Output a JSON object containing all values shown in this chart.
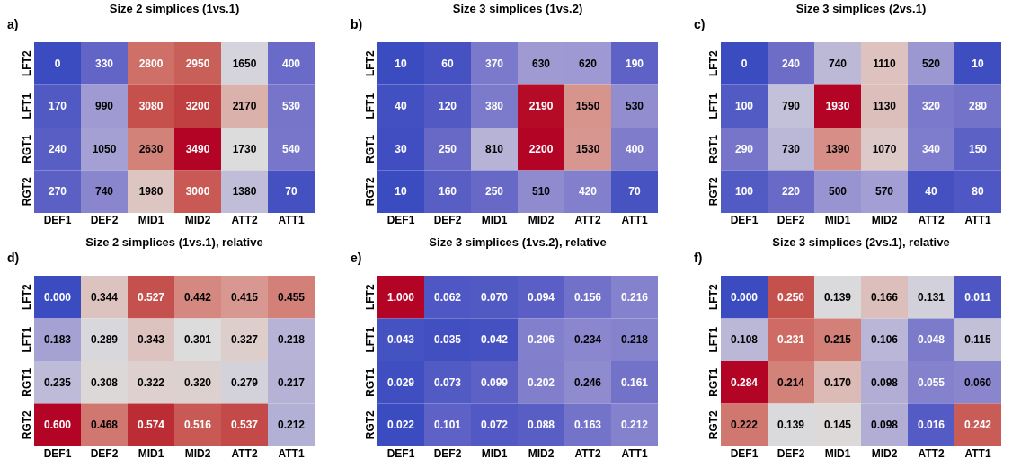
{
  "chart_data": [
    {
      "type": "heatmap",
      "title": "Size 2 simplices (1vs.1)",
      "annotations": [
        "a)"
      ],
      "categories": [
        "DEF1",
        "DEF2",
        "MID1",
        "MID2",
        "ATT2",
        "ATT1"
      ],
      "y_categories": [
        "LFT2",
        "LFT1",
        "RGT1",
        "RGT2"
      ],
      "cells": [
        [
          0,
          330,
          2800,
          2950,
          1650,
          400
        ],
        [
          170,
          990,
          3080,
          3200,
          2170,
          530
        ],
        [
          240,
          1050,
          2630,
          3490,
          1730,
          540
        ],
        [
          270,
          740,
          1980,
          3000,
          1380,
          70
        ]
      ],
      "cell_labels": [
        [
          "0",
          "330",
          "2800",
          "2950",
          "1650",
          "400"
        ],
        [
          "170",
          "990",
          "3080",
          "3200",
          "2170",
          "530"
        ],
        [
          "240",
          "1050",
          "2630",
          "3490",
          "1730",
          "540"
        ],
        [
          "270",
          "740",
          "1980",
          "3000",
          "1380",
          "70"
        ]
      ]
    },
    {
      "type": "heatmap",
      "title": "Size 3 simplices (1vs.2)",
      "annotations": [
        "b)"
      ],
      "categories": [
        "DEF1",
        "DEF2",
        "MID1",
        "MID2",
        "ATT2",
        "ATT1"
      ],
      "y_categories": [
        "LFT2",
        "LFT1",
        "RGT1",
        "RGT2"
      ],
      "cells": [
        [
          10,
          60,
          370,
          630,
          620,
          190
        ],
        [
          40,
          120,
          380,
          2190,
          1550,
          530
        ],
        [
          30,
          250,
          810,
          2200,
          1530,
          400
        ],
        [
          10,
          160,
          250,
          510,
          420,
          70
        ]
      ],
      "cell_labels": [
        [
          "10",
          "60",
          "370",
          "630",
          "620",
          "190"
        ],
        [
          "40",
          "120",
          "380",
          "2190",
          "1550",
          "530"
        ],
        [
          "30",
          "250",
          "810",
          "2200",
          "1530",
          "400"
        ],
        [
          "10",
          "160",
          "250",
          "510",
          "420",
          "70"
        ]
      ]
    },
    {
      "type": "heatmap",
      "title": "Size 3 simplices (2vs.1)",
      "annotations": [
        "c)"
      ],
      "categories": [
        "DEF1",
        "DEF2",
        "MID1",
        "MID2",
        "ATT2",
        "ATT1"
      ],
      "y_categories": [
        "LFT2",
        "LFT1",
        "RGT1",
        "RGT2"
      ],
      "cells": [
        [
          0,
          240,
          740,
          1110,
          520,
          10
        ],
        [
          100,
          790,
          1930,
          1130,
          320,
          280
        ],
        [
          290,
          730,
          1390,
          1070,
          340,
          150
        ],
        [
          100,
          220,
          500,
          570,
          40,
          80
        ]
      ],
      "cell_labels": [
        [
          "0",
          "240",
          "740",
          "1110",
          "520",
          "10"
        ],
        [
          "100",
          "790",
          "1930",
          "1130",
          "320",
          "280"
        ],
        [
          "290",
          "730",
          "1390",
          "1070",
          "340",
          "150"
        ],
        [
          "100",
          "220",
          "500",
          "570",
          "40",
          "80"
        ]
      ]
    },
    {
      "type": "heatmap",
      "title": "Size 2 simplices (1vs.1), relative",
      "annotations": [
        "d)"
      ],
      "categories": [
        "DEF1",
        "DEF2",
        "MID1",
        "MID2",
        "ATT2",
        "ATT1"
      ],
      "y_categories": [
        "LFT2",
        "LFT1",
        "RGT1",
        "RGT2"
      ],
      "cells": [
        [
          0.0,
          0.344,
          0.527,
          0.442,
          0.415,
          0.455
        ],
        [
          0.183,
          0.289,
          0.343,
          0.301,
          0.327,
          0.218
        ],
        [
          0.235,
          0.308,
          0.322,
          0.32,
          0.279,
          0.217
        ],
        [
          0.6,
          0.468,
          0.574,
          0.516,
          0.537,
          0.212
        ]
      ],
      "cell_labels": [
        [
          "0.000",
          "0.344",
          "0.527",
          "0.442",
          "0.415",
          "0.455"
        ],
        [
          "0.183",
          "0.289",
          "0.343",
          "0.301",
          "0.327",
          "0.218"
        ],
        [
          "0.235",
          "0.308",
          "0.322",
          "0.320",
          "0.279",
          "0.217"
        ],
        [
          "0.600",
          "0.468",
          "0.574",
          "0.516",
          "0.537",
          "0.212"
        ]
      ]
    },
    {
      "type": "heatmap",
      "title": "Size 3 simplices (1vs.2), relative",
      "annotations": [
        "e)"
      ],
      "categories": [
        "DEF1",
        "DEF2",
        "MID1",
        "MID2",
        "ATT2",
        "ATT1"
      ],
      "y_categories": [
        "LFT2",
        "LFT1",
        "RGT1",
        "RGT2"
      ],
      "cells": [
        [
          1.0,
          0.062,
          0.07,
          0.094,
          0.156,
          0.216
        ],
        [
          0.043,
          0.035,
          0.042,
          0.206,
          0.234,
          0.218
        ],
        [
          0.029,
          0.073,
          0.099,
          0.202,
          0.246,
          0.161
        ],
        [
          0.022,
          0.101,
          0.072,
          0.088,
          0.163,
          0.212
        ]
      ],
      "cell_labels": [
        [
          "1.000",
          "0.062",
          "0.070",
          "0.094",
          "0.156",
          "0.216"
        ],
        [
          "0.043",
          "0.035",
          "0.042",
          "0.206",
          "0.234",
          "0.218"
        ],
        [
          "0.029",
          "0.073",
          "0.099",
          "0.202",
          "0.246",
          "0.161"
        ],
        [
          "0.022",
          "0.101",
          "0.072",
          "0.088",
          "0.163",
          "0.212"
        ]
      ]
    },
    {
      "type": "heatmap",
      "title": "Size 3 simplices (2vs.1), relative",
      "annotations": [
        "f)"
      ],
      "categories": [
        "DEF1",
        "DEF2",
        "MID1",
        "MID2",
        "ATT2",
        "ATT1"
      ],
      "y_categories": [
        "LFT2",
        "LFT1",
        "RGT1",
        "RGT2"
      ],
      "cells": [
        [
          0.0,
          0.25,
          0.139,
          0.166,
          0.131,
          0.011
        ],
        [
          0.108,
          0.231,
          0.215,
          0.106,
          0.048,
          0.115
        ],
        [
          0.284,
          0.214,
          0.17,
          0.098,
          0.055,
          0.06
        ],
        [
          0.222,
          0.139,
          0.145,
          0.098,
          0.016,
          0.242
        ]
      ],
      "cell_labels": [
        [
          "0.000",
          "0.250",
          "0.139",
          "0.166",
          "0.131",
          "0.011"
        ],
        [
          "0.108",
          "0.231",
          "0.215",
          "0.106",
          "0.048",
          "0.115"
        ],
        [
          "0.284",
          "0.214",
          "0.170",
          "0.098",
          "0.055",
          "0.060"
        ],
        [
          "0.222",
          "0.139",
          "0.145",
          "0.098",
          "0.016",
          "0.242"
        ]
      ]
    }
  ]
}
